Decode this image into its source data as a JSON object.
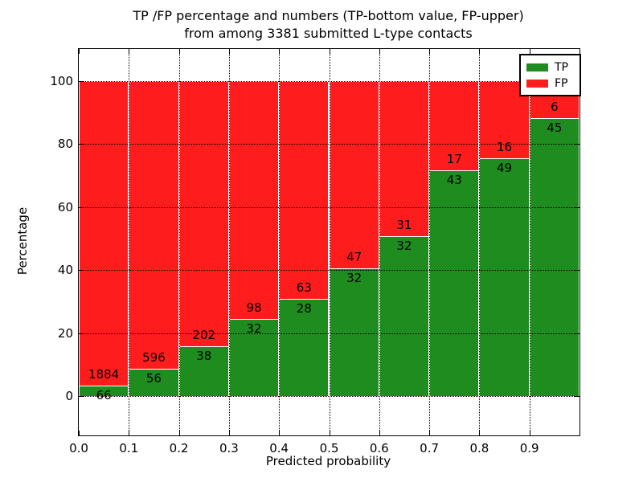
{
  "chart_data": {
    "type": "bar",
    "stacked": true,
    "normalized_to_percent": true,
    "title_line1": "TP /FP percentage and numbers (TP-bottom value, FP-upper)",
    "title_line2": "from among 3381 submitted L-type contacts",
    "xlabel": "Predicted probability",
    "ylabel": "Percentage",
    "categories": [
      "0.0",
      "0.1",
      "0.2",
      "0.3",
      "0.4",
      "0.5",
      "0.6",
      "0.7",
      "0.8",
      "0.9"
    ],
    "x_tick_labels": [
      "0.0",
      "0.1",
      "0.2",
      "0.3",
      "0.4",
      "0.5",
      "0.6",
      "0.7",
      "0.8",
      "0.9"
    ],
    "y_ticks": [
      0,
      20,
      40,
      60,
      80,
      100
    ],
    "xlim": [
      0.0,
      1.0
    ],
    "ylim": [
      -12.5,
      110.2
    ],
    "bin_width": 0.1,
    "grid": "dotted, on top of bars",
    "legend_position": "upper right",
    "total_contacts": 3381,
    "series": [
      {
        "name": "TP",
        "color": "#1f8c1f",
        "counts": [
          66,
          56,
          38,
          32,
          28,
          32,
          32,
          43,
          49,
          45
        ]
      },
      {
        "name": "FP",
        "color": "#ff1c1c",
        "counts": [
          1884,
          596,
          202,
          98,
          63,
          47,
          31,
          17,
          16,
          6
        ]
      }
    ],
    "tp_percent_heights": [
      3.38,
      8.59,
      15.83,
      24.62,
      30.77,
      40.51,
      50.79,
      71.67,
      75.38,
      88.24
    ]
  }
}
